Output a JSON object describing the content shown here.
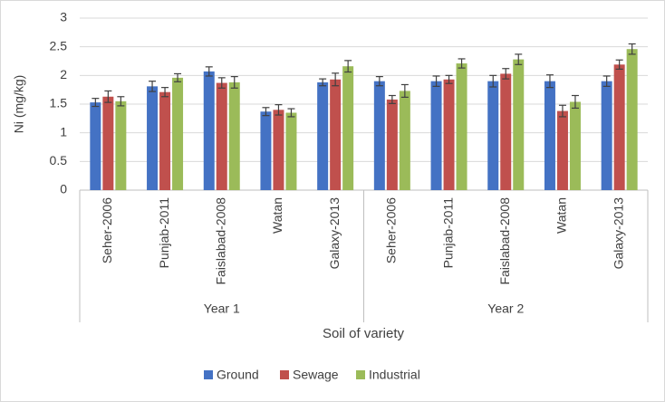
{
  "chart_data": {
    "type": "bar",
    "y_label": "Ni (mg/kg)",
    "x_label": "Soil of variety",
    "groups": [
      {
        "name": "Year 1",
        "categories": [
          "Seher-2006",
          "Punjab-2011",
          "Faislabad-2008",
          "Watan",
          "Galaxy-2013"
        ]
      },
      {
        "name": "Year 2",
        "categories": [
          "Seher-2006",
          "Punjab-2011",
          "Faislabad-2008",
          "Watan",
          "Galaxy-2013"
        ]
      }
    ],
    "series": [
      {
        "name": "Ground",
        "color": "#4472c4",
        "values": [
          1.53,
          1.81,
          2.07,
          1.37,
          1.88,
          1.9,
          1.9,
          1.9,
          1.9,
          1.9
        ],
        "errors": [
          0.07,
          0.09,
          0.08,
          0.07,
          0.06,
          0.08,
          0.09,
          0.1,
          0.11,
          0.09
        ]
      },
      {
        "name": "Sewage",
        "color": "#c0504d",
        "values": [
          1.63,
          1.71,
          1.87,
          1.4,
          1.93,
          1.58,
          1.93,
          2.03,
          1.38,
          2.19
        ],
        "errors": [
          0.1,
          0.08,
          0.09,
          0.09,
          0.11,
          0.07,
          0.07,
          0.09,
          0.1,
          0.08
        ]
      },
      {
        "name": "Industrial",
        "color": "#9bbb59",
        "values": [
          1.55,
          1.96,
          1.88,
          1.35,
          2.16,
          1.73,
          2.21,
          2.28,
          1.54,
          2.46
        ],
        "errors": [
          0.08,
          0.07,
          0.1,
          0.07,
          0.1,
          0.11,
          0.08,
          0.09,
          0.11,
          0.09
        ]
      }
    ],
    "ylim": [
      0,
      3
    ],
    "yticks": [
      0,
      0.5,
      1,
      1.5,
      2,
      2.5,
      3
    ],
    "grid": true,
    "legend": "bottom"
  }
}
